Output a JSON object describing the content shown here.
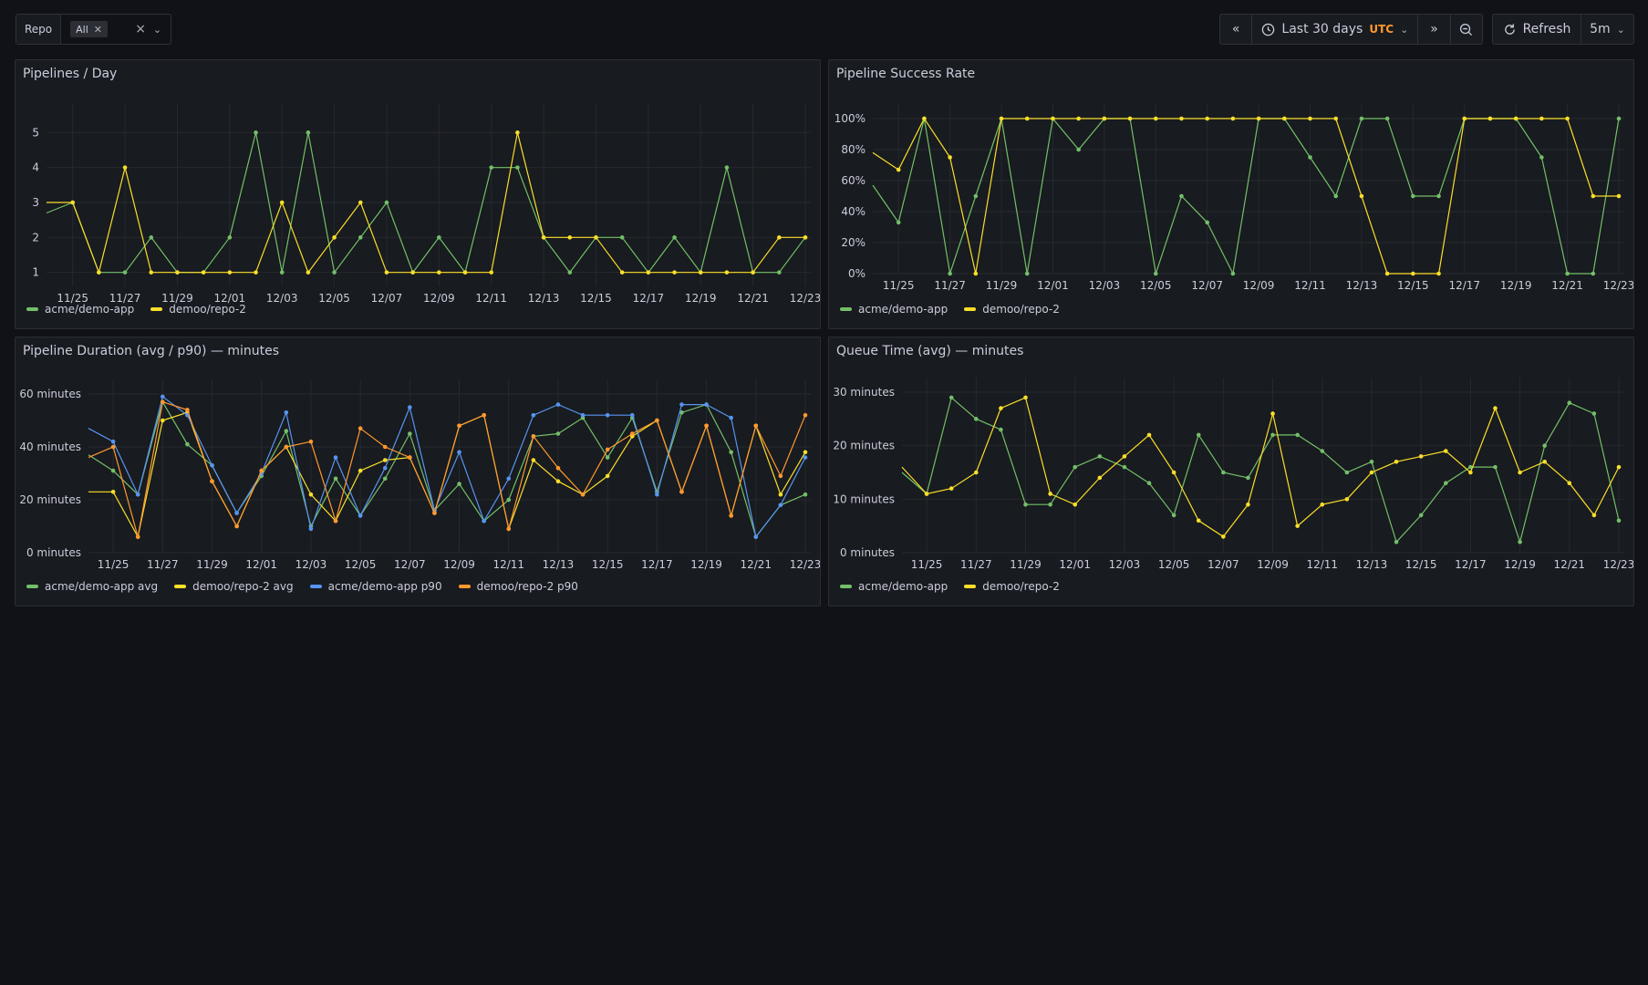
{
  "toolbar": {
    "repo_label": "Repo",
    "repo_chip": "All",
    "time_range": "Last 30 days",
    "timezone": "UTC",
    "refresh_label": "Refresh",
    "refresh_interval": "5m"
  },
  "colors": {
    "green": "#73bf69",
    "yellow": "#fade2a",
    "blue": "#5794f2",
    "orange": "#ff9830",
    "utc": "#ff9830"
  },
  "icons": [
    "chevron-left-double-icon",
    "clock-icon",
    "chevron-down-icon",
    "chevron-right-double-icon",
    "zoom-out-icon",
    "refresh-icon"
  ],
  "panels": {
    "pipelines": {
      "title": "Pipelines / Day"
    },
    "success": {
      "title": "Pipeline Success Rate"
    },
    "duration": {
      "title": "Pipeline Duration (avg / p90) — minutes"
    },
    "queue": {
      "title": "Queue Time (avg) — minutes"
    }
  },
  "chart_data": [
    {
      "id": "pipelines",
      "type": "line",
      "title": "Pipelines / Day",
      "x": [
        "11/24",
        "11/25",
        "11/26",
        "11/27",
        "11/28",
        "11/29",
        "11/30",
        "12/01",
        "12/02",
        "12/03",
        "12/04",
        "12/05",
        "12/06",
        "12/07",
        "12/08",
        "12/09",
        "12/10",
        "12/11",
        "12/12",
        "12/13",
        "12/14",
        "12/15",
        "12/16",
        "12/17",
        "12/18",
        "12/19",
        "12/20",
        "12/21",
        "12/22",
        "12/23"
      ],
      "xticks": [
        "11/25",
        "11/27",
        "11/29",
        "12/01",
        "12/03",
        "12/05",
        "12/07",
        "12/09",
        "12/11",
        "12/13",
        "12/15",
        "12/17",
        "12/19",
        "12/21",
        "12/23"
      ],
      "yticks": [
        "1",
        "2",
        "3",
        "4",
        "5"
      ],
      "ylim": [
        0.6,
        5.4
      ],
      "series": [
        {
          "name": "acme/demo-app",
          "color": "#73bf69",
          "values": [
            2.7,
            3,
            1,
            1,
            2,
            1,
            1,
            2,
            5,
            1,
            5,
            1,
            2,
            3,
            1,
            2,
            1,
            4,
            4,
            2,
            1,
            2,
            2,
            1,
            2,
            1,
            4,
            1,
            1,
            2
          ]
        },
        {
          "name": "demoo/repo-2",
          "color": "#fade2a",
          "values": [
            3,
            3,
            1,
            4,
            1,
            1,
            1,
            1,
            1,
            3,
            1,
            2,
            3,
            1,
            1,
            1,
            1,
            1,
            5,
            2,
            2,
            2,
            1,
            1,
            1,
            1,
            1,
            1,
            2,
            2
          ]
        }
      ],
      "legend": "bottom"
    },
    {
      "id": "success",
      "type": "line",
      "title": "Pipeline Success Rate",
      "x": [
        "11/24",
        "11/25",
        "11/26",
        "11/27",
        "11/28",
        "11/29",
        "11/30",
        "12/01",
        "12/02",
        "12/03",
        "12/04",
        "12/05",
        "12/06",
        "12/07",
        "12/08",
        "12/09",
        "12/10",
        "12/11",
        "12/12",
        "12/13",
        "12/14",
        "12/15",
        "12/16",
        "12/17",
        "12/18",
        "12/19",
        "12/20",
        "12/21",
        "12/22",
        "12/23"
      ],
      "xticks": [
        "11/25",
        "11/27",
        "11/29",
        "12/01",
        "12/03",
        "12/05",
        "12/07",
        "12/09",
        "12/11",
        "12/13",
        "12/15",
        "12/17",
        "12/19",
        "12/21",
        "12/23"
      ],
      "yticks": [
        "0%",
        "20%",
        "40%",
        "60%",
        "80%",
        "100%"
      ],
      "ylim": [
        0,
        100
      ],
      "series": [
        {
          "name": "acme/demo-app",
          "color": "#73bf69",
          "values": [
            57,
            33,
            100,
            0,
            50,
            100,
            0,
            100,
            80,
            100,
            100,
            0,
            50,
            33,
            0,
            100,
            100,
            75,
            50,
            100,
            100,
            50,
            50,
            100,
            100,
            100,
            75,
            0,
            0,
            100
          ]
        },
        {
          "name": "demoo/repo-2",
          "color": "#fade2a",
          "values": [
            78,
            67,
            100,
            75,
            0,
            100,
            100,
            100,
            100,
            100,
            100,
            100,
            100,
            100,
            100,
            100,
            100,
            100,
            100,
            50,
            0,
            0,
            0,
            100,
            100,
            100,
            100,
            100,
            50,
            50
          ]
        }
      ],
      "legend": "bottom"
    },
    {
      "id": "duration",
      "type": "line",
      "title": "Pipeline Duration (avg / p90) — minutes",
      "x": [
        "11/24",
        "11/25",
        "11/26",
        "11/27",
        "11/28",
        "11/29",
        "11/30",
        "12/01",
        "12/02",
        "12/03",
        "12/04",
        "12/05",
        "12/06",
        "12/07",
        "12/08",
        "12/09",
        "12/10",
        "12/11",
        "12/12",
        "12/13",
        "12/14",
        "12/15",
        "12/16",
        "12/17",
        "12/18",
        "12/19",
        "12/20",
        "12/21",
        "12/22",
        "12/23"
      ],
      "xticks": [
        "11/25",
        "11/27",
        "11/29",
        "12/01",
        "12/03",
        "12/05",
        "12/07",
        "12/09",
        "12/11",
        "12/13",
        "12/15",
        "12/17",
        "12/19",
        "12/21",
        "12/23"
      ],
      "yticks": [
        "0 minutes",
        "20 minutes",
        "40 minutes",
        "60 minutes"
      ],
      "ylim": [
        0,
        60
      ],
      "series": [
        {
          "name": "acme/demo-app avg",
          "color": "#73bf69",
          "values": [
            37,
            31,
            22,
            57,
            41,
            33,
            15,
            29,
            46,
            10,
            28,
            14,
            28,
            45,
            16,
            26,
            12,
            20,
            44,
            45,
            51,
            36,
            51,
            23,
            53,
            56,
            38,
            6,
            18,
            22
          ]
        },
        {
          "name": "demoo/repo-2 avg",
          "color": "#fade2a",
          "values": [
            23,
            23,
            6,
            50,
            53,
            27,
            10,
            31,
            40,
            22,
            12,
            31,
            35,
            36,
            15,
            48,
            52,
            9,
            35,
            27,
            22,
            29,
            44,
            50,
            23,
            48,
            14,
            48,
            22,
            38
          ]
        },
        {
          "name": "acme/demo-app p90",
          "color": "#5794f2",
          "values": [
            47,
            42,
            22,
            59,
            52,
            33,
            15,
            30,
            53,
            9,
            36,
            14,
            32,
            55,
            16,
            38,
            12,
            28,
            52,
            56,
            52,
            52,
            52,
            22,
            56,
            56,
            51,
            6,
            18,
            36
          ]
        },
        {
          "name": "demoo/repo-2 p90",
          "color": "#ff9830",
          "values": [
            36,
            40,
            6,
            57,
            54,
            27,
            10,
            31,
            40,
            42,
            12,
            47,
            40,
            36,
            15,
            48,
            52,
            9,
            44,
            32,
            22,
            39,
            45,
            50,
            23,
            48,
            14,
            48,
            29,
            52
          ]
        }
      ],
      "legend": "bottom"
    },
    {
      "id": "queue",
      "type": "line",
      "title": "Queue Time (avg) — minutes",
      "x": [
        "11/24",
        "11/25",
        "11/26",
        "11/27",
        "11/28",
        "11/29",
        "11/30",
        "12/01",
        "12/02",
        "12/03",
        "12/04",
        "12/05",
        "12/06",
        "12/07",
        "12/08",
        "12/09",
        "12/10",
        "12/11",
        "12/12",
        "12/13",
        "12/14",
        "12/15",
        "12/16",
        "12/17",
        "12/18",
        "12/19",
        "12/20",
        "12/21",
        "12/22",
        "12/23"
      ],
      "xticks": [
        "11/25",
        "11/27",
        "11/29",
        "12/01",
        "12/03",
        "12/05",
        "12/07",
        "12/09",
        "12/11",
        "12/13",
        "12/15",
        "12/17",
        "12/19",
        "12/21",
        "12/23"
      ],
      "yticks": [
        "0 minutes",
        "10 minutes",
        "20 minutes",
        "30 minutes"
      ],
      "ylim": [
        0,
        30
      ],
      "series": [
        {
          "name": "acme/demo-app",
          "color": "#73bf69",
          "values": [
            15,
            11,
            29,
            25,
            23,
            9,
            9,
            16,
            18,
            16,
            13,
            7,
            22,
            15,
            14,
            22,
            22,
            19,
            15,
            17,
            2,
            7,
            13,
            16,
            16,
            2,
            20,
            28,
            26,
            6
          ]
        },
        {
          "name": "demoo/repo-2",
          "color": "#fade2a",
          "values": [
            16,
            11,
            12,
            15,
            27,
            29,
            11,
            9,
            14,
            18,
            22,
            15,
            6,
            3,
            9,
            26,
            5,
            9,
            10,
            15,
            17,
            18,
            19,
            15,
            27,
            15,
            17,
            13,
            7,
            16
          ]
        }
      ],
      "legend": "bottom"
    }
  ]
}
